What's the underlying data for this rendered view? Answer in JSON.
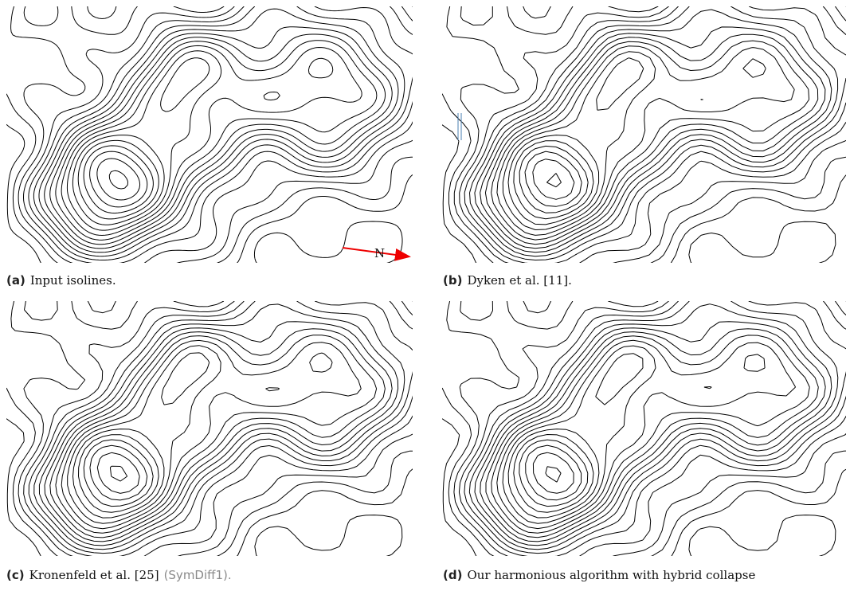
{
  "figure": {
    "panels": [
      {
        "label": "(a)",
        "caption": "Input isolines.",
        "annotation": "N"
      },
      {
        "label": "(b)",
        "caption": "Dyken et al. [11]."
      },
      {
        "label": "(c)",
        "caption": "Kronenfeld et al. [25]",
        "note": "(SymDiff1)."
      },
      {
        "label": "(d)",
        "caption": "Our harmonious algorithm with hybrid collapse"
      }
    ]
  }
}
